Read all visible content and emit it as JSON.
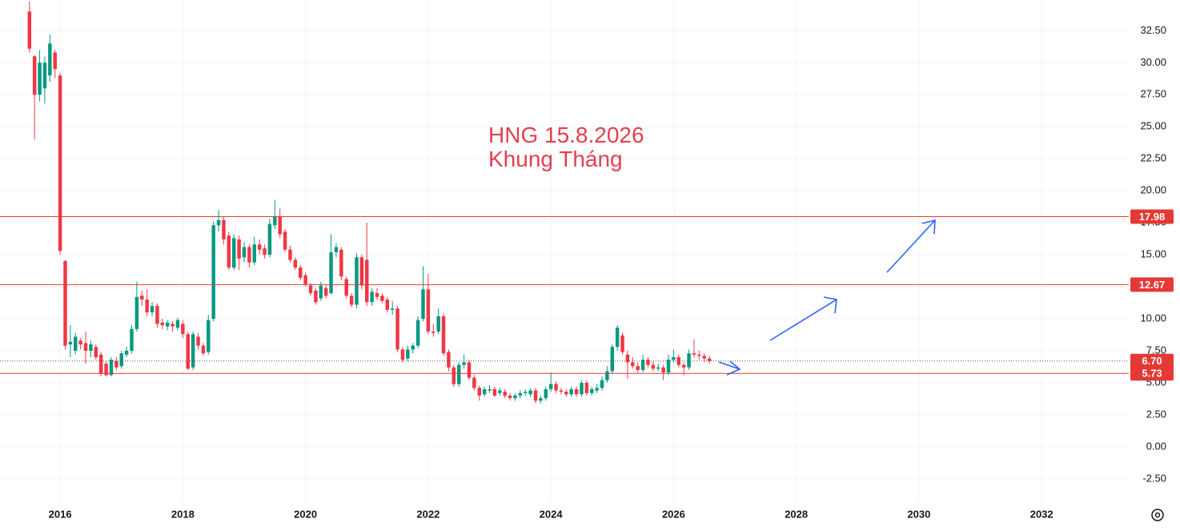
{
  "chart_data": {
    "type": "candlestick",
    "annotations": [
      "HNG 15.8.2026",
      "Khung Tháng"
    ],
    "up_color": "#089981",
    "down_color": "#f23645",
    "level_color": "#e53935",
    "xlim": [
      2015.02,
      2033.42
    ],
    "xticks": [
      2016,
      2018,
      2020,
      2022,
      2024,
      2026,
      2028,
      2030,
      2032
    ],
    "ylim": [
      -4.2,
      34.9
    ],
    "yticks": [
      {
        "value": -2.5,
        "label": "-2.50"
      },
      {
        "value": 0,
        "label": "0.00"
      },
      {
        "value": 2.5,
        "label": "2.50"
      },
      {
        "value": 5,
        "label": "5.00"
      },
      {
        "value": 7.5,
        "label": "7.50"
      },
      {
        "value": 10,
        "label": "10.00"
      },
      {
        "value": 12.5,
        "label": "12.50"
      },
      {
        "value": 15,
        "label": "15.00"
      },
      {
        "value": 17.5,
        "label": "17.50"
      },
      {
        "value": 20,
        "label": "20.00"
      },
      {
        "value": 22.5,
        "label": "22.50"
      },
      {
        "value": 25,
        "label": "25.00"
      },
      {
        "value": 27.5,
        "label": "27.50"
      },
      {
        "value": 30,
        "label": "30.00"
      },
      {
        "value": 32.5,
        "label": "32.50"
      }
    ],
    "grid": true,
    "levels": [
      17.98,
      12.67,
      5.73
    ],
    "last_price": {
      "value": 6.7,
      "label": "6.70"
    },
    "candles": [
      [
        "2015-07",
        34,
        34.8,
        30.8,
        31.1
      ],
      [
        "2015-08",
        30.5,
        30.6,
        24,
        27.5
      ],
      [
        "2015-09",
        27.5,
        31,
        27,
        30
      ],
      [
        "2015-10",
        28,
        30.5,
        26.8,
        30
      ],
      [
        "2015-11",
        29,
        32.2,
        28.5,
        31.5
      ],
      [
        "2015-12",
        30.8,
        31,
        28.8,
        29.5
      ],
      [
        "2016-01",
        29,
        29.2,
        15,
        15.3
      ],
      [
        "2016-02",
        14.5,
        14.6,
        7.6,
        7.9
      ],
      [
        "2016-03",
        8,
        9.5,
        7,
        8.2
      ],
      [
        "2016-04",
        7.5,
        8.9,
        7.2,
        8.6
      ],
      [
        "2016-05",
        8.3,
        8.5,
        7.6,
        8
      ],
      [
        "2016-06",
        8.1,
        9,
        6.5,
        7.5
      ],
      [
        "2016-07",
        7.5,
        8.3,
        7,
        8
      ],
      [
        "2016-08",
        7.8,
        8,
        6.8,
        7
      ],
      [
        "2016-09",
        7.2,
        7.4,
        5.5,
        5.7
      ],
      [
        "2016-10",
        6.5,
        6.7,
        5.5,
        5.6
      ],
      [
        "2016-11",
        5.6,
        7,
        5.5,
        6.8
      ],
      [
        "2016-12",
        6.7,
        7,
        6,
        6.2
      ],
      [
        "2017-01",
        6.3,
        7.5,
        6.1,
        7.3
      ],
      [
        "2017-02",
        7.2,
        7.8,
        7,
        7.5
      ],
      [
        "2017-03",
        7.5,
        9.5,
        7.3,
        9.2
      ],
      [
        "2017-04",
        9.2,
        12.9,
        9,
        11.7
      ],
      [
        "2017-05",
        11.8,
        12.2,
        11,
        11.5
      ],
      [
        "2017-06",
        11.5,
        12.3,
        10.2,
        10.5
      ],
      [
        "2017-07",
        10.5,
        11.3,
        10.2,
        11
      ],
      [
        "2017-08",
        11,
        11.2,
        9.3,
        9.6
      ],
      [
        "2017-09",
        9.7,
        10,
        9.2,
        9.5
      ],
      [
        "2017-10",
        9.4,
        9.9,
        9.1,
        9.7
      ],
      [
        "2017-11",
        9.6,
        9.8,
        9,
        9.4
      ],
      [
        "2017-12",
        9.3,
        10.1,
        9.1,
        9.9
      ],
      [
        "2018-01",
        9.6,
        9.9,
        8.5,
        8.8
      ],
      [
        "2018-02",
        8.8,
        9,
        6,
        6.1
      ],
      [
        "2018-03",
        6.2,
        9,
        6,
        8.8
      ],
      [
        "2018-04",
        8.6,
        8.9,
        7.6,
        7.9
      ],
      [
        "2018-05",
        7.9,
        8.1,
        7.1,
        7.3
      ],
      [
        "2018-06",
        7.4,
        10.3,
        7.2,
        9.9
      ],
      [
        "2018-07",
        10,
        17.6,
        9.8,
        17.3
      ],
      [
        "2018-08",
        17.3,
        18.5,
        16.8,
        17.7
      ],
      [
        "2018-09",
        17.7,
        18,
        15.8,
        16.2
      ],
      [
        "2018-10",
        16.5,
        16.8,
        13.8,
        14
      ],
      [
        "2018-11",
        14,
        16.6,
        13.8,
        16.3
      ],
      [
        "2018-12",
        16.2,
        16.5,
        13.8,
        14.7
      ],
      [
        "2019-01",
        14.8,
        16,
        14.4,
        15.6
      ],
      [
        "2019-02",
        15.6,
        15.8,
        14,
        14.4
      ],
      [
        "2019-03",
        14.4,
        16.4,
        14.2,
        15.8
      ],
      [
        "2019-04",
        15.8,
        16.2,
        15,
        15.4
      ],
      [
        "2019-05",
        15.5,
        15.8,
        14.7,
        15
      ],
      [
        "2019-06",
        15,
        17.8,
        14.8,
        17.4
      ],
      [
        "2019-07",
        17.3,
        19.3,
        17,
        18
      ],
      [
        "2019-08",
        18,
        18.6,
        16.3,
        16.6
      ],
      [
        "2019-09",
        16.8,
        17,
        15.2,
        15.4
      ],
      [
        "2019-10",
        15.4,
        15.7,
        14.4,
        14.6
      ],
      [
        "2019-11",
        14.6,
        14.8,
        13.8,
        14
      ],
      [
        "2019-12",
        14,
        14.2,
        13,
        13.2
      ],
      [
        "2020-01",
        13.4,
        13.6,
        12.5,
        12.7
      ],
      [
        "2020-02",
        12.6,
        12.8,
        11.8,
        12
      ],
      [
        "2020-03",
        12.2,
        12.4,
        11.1,
        11.3
      ],
      [
        "2020-04",
        11.6,
        12.9,
        11.4,
        12.6
      ],
      [
        "2020-05",
        12.4,
        12.6,
        11.6,
        11.8
      ],
      [
        "2020-06",
        12,
        16.6,
        11.9,
        15.2
      ],
      [
        "2020-07",
        15.2,
        15.9,
        14.8,
        15.6
      ],
      [
        "2020-08",
        15.4,
        15.6,
        13,
        13.3
      ],
      [
        "2020-09",
        13.1,
        13.3,
        11.6,
        11.8
      ],
      [
        "2020-10",
        11.8,
        12,
        10.9,
        11.1
      ],
      [
        "2020-11",
        11.1,
        15.1,
        10.8,
        14.8
      ],
      [
        "2020-12",
        14.8,
        15,
        12.3,
        12.6
      ],
      [
        "2021-01",
        14.6,
        17.5,
        11,
        11.3
      ],
      [
        "2021-02",
        11.3,
        12.4,
        11,
        12.1
      ],
      [
        "2021-03",
        12,
        12.4,
        11.5,
        11.7
      ],
      [
        "2021-04",
        11.8,
        12,
        11.2,
        11.4
      ],
      [
        "2021-05",
        11.5,
        11.7,
        10.5,
        10.7
      ],
      [
        "2021-06",
        10.7,
        11.4,
        10.3,
        10.8
      ],
      [
        "2021-07",
        10.8,
        11,
        7.4,
        7.6
      ],
      [
        "2021-08",
        7.6,
        7.8,
        6.6,
        6.8
      ],
      [
        "2021-09",
        6.9,
        7.9,
        6.7,
        7.6
      ],
      [
        "2021-10",
        7.6,
        8.1,
        7.3,
        7.9
      ],
      [
        "2021-11",
        7.9,
        10.2,
        7.7,
        9.9
      ],
      [
        "2021-12",
        10,
        14.1,
        9.8,
        12.3
      ],
      [
        "2022-01",
        12.3,
        13.5,
        8.8,
        9
      ],
      [
        "2022-02",
        9,
        9.6,
        8.6,
        8.9
      ],
      [
        "2022-03",
        9,
        10.8,
        8.8,
        10.2
      ],
      [
        "2022-04",
        10.2,
        10.4,
        7.1,
        7.3
      ],
      [
        "2022-05",
        7.4,
        7.6,
        5.9,
        6.2
      ],
      [
        "2022-06",
        6.2,
        6.4,
        4.7,
        4.9
      ],
      [
        "2022-07",
        4.9,
        6.6,
        4.7,
        6.4
      ],
      [
        "2022-08",
        6.4,
        7.2,
        6.1,
        6.6
      ],
      [
        "2022-09",
        6.6,
        6.8,
        5.2,
        5.4
      ],
      [
        "2022-10",
        5.4,
        5.6,
        4.4,
        4.6
      ],
      [
        "2022-11",
        4.6,
        4.8,
        3.6,
        4
      ],
      [
        "2022-12",
        4.1,
        4.7,
        3.9,
        4.5
      ],
      [
        "2023-01",
        4.4,
        4.8,
        4.2,
        4.5
      ],
      [
        "2023-02",
        4.5,
        4.7,
        3.9,
        4
      ],
      [
        "2023-03",
        4.2,
        4.6,
        4,
        4.4
      ],
      [
        "2023-04",
        4.3,
        4.5,
        3.8,
        4
      ],
      [
        "2023-05",
        4,
        4.2,
        3.6,
        3.8
      ],
      [
        "2023-06",
        3.8,
        4.2,
        3.6,
        4
      ],
      [
        "2023-07",
        4,
        4.4,
        3.8,
        4.2
      ],
      [
        "2023-08",
        4.2,
        4.5,
        4,
        4.3
      ],
      [
        "2023-09",
        4.1,
        4.6,
        3.9,
        4.4
      ],
      [
        "2023-10",
        4.4,
        4.6,
        3.4,
        3.6
      ],
      [
        "2023-11",
        3.6,
        4,
        3.4,
        3.8
      ],
      [
        "2023-12",
        3.8,
        4.7,
        3.6,
        4.5
      ],
      [
        "2024-01",
        4.5,
        5.8,
        4.3,
        4.9
      ],
      [
        "2024-02",
        4.9,
        5.1,
        4.2,
        4.4
      ],
      [
        "2024-03",
        4.4,
        4.6,
        4.1,
        4.3
      ],
      [
        "2024-04",
        4.3,
        4.5,
        3.9,
        4.1
      ],
      [
        "2024-05",
        4.1,
        4.7,
        3.9,
        4.5
      ],
      [
        "2024-06",
        4.5,
        4.7,
        3.9,
        4.1
      ],
      [
        "2024-07",
        4.1,
        5.2,
        3.9,
        5
      ],
      [
        "2024-08",
        5,
        5.2,
        4,
        4.2
      ],
      [
        "2024-09",
        4.2,
        4.7,
        4,
        4.5
      ],
      [
        "2024-10",
        4.4,
        4.9,
        4.2,
        4.6
      ],
      [
        "2024-11",
        4.6,
        5.5,
        4.4,
        5.2
      ],
      [
        "2024-12",
        5.2,
        6.3,
        5,
        5.9
      ],
      [
        "2025-01",
        5.9,
        8,
        5.7,
        7.8
      ],
      [
        "2025-02",
        7.8,
        9.5,
        7.5,
        9.3
      ],
      [
        "2025-03",
        8.7,
        8.9,
        7.2,
        7.4
      ],
      [
        "2025-04",
        7.2,
        7.5,
        5.3,
        6.6
      ],
      [
        "2025-05",
        6.6,
        7,
        6.1,
        6.3
      ],
      [
        "2025-06",
        6.3,
        6.6,
        5.8,
        6
      ],
      [
        "2025-07",
        6,
        7.2,
        5.8,
        6.8
      ],
      [
        "2025-08",
        6.8,
        7,
        6.2,
        6.4
      ],
      [
        "2025-09",
        6.4,
        6.7,
        5.9,
        6.1
      ],
      [
        "2025-10",
        6.1,
        6.5,
        5.9,
        6.2
      ],
      [
        "2025-11",
        6.2,
        6.4,
        5.2,
        5.8
      ],
      [
        "2025-12",
        5.8,
        7.2,
        5.6,
        6.8
      ],
      [
        "2026-01",
        6.8,
        7.6,
        6.6,
        7
      ],
      [
        "2026-02",
        7,
        7.2,
        6.2,
        6.4
      ],
      [
        "2026-03",
        6.4,
        6.6,
        5.6,
        6.2
      ],
      [
        "2026-04",
        6.2,
        7.6,
        6,
        7.3
      ],
      [
        "2026-05",
        7.3,
        8.4,
        7,
        7.2
      ],
      [
        "2026-06",
        7.2,
        7.5,
        6.8,
        7.1
      ],
      [
        "2026-07",
        7.1,
        7.3,
        6.6,
        6.9
      ],
      [
        "2026-08",
        6.9,
        7.1,
        6.5,
        6.7
      ]
    ]
  }
}
